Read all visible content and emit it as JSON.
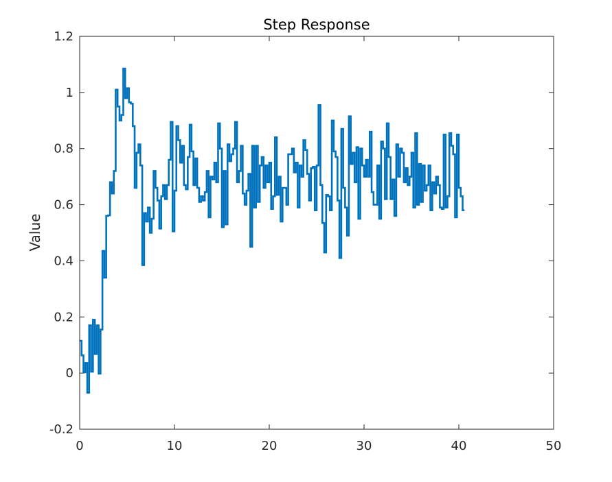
{
  "chart_data": {
    "type": "line",
    "style": "stairs",
    "title": "Step Response",
    "xlabel": "",
    "ylabel": "Value",
    "xlim": [
      0,
      50
    ],
    "ylim": [
      -0.2,
      1.2
    ],
    "xticks": [
      "0",
      "10",
      "20",
      "30",
      "40",
      "50"
    ],
    "yticks": [
      "-0.2",
      "0",
      "0.2",
      "0.4",
      "0.6",
      "0.8",
      "1",
      "1.2"
    ],
    "grid": false,
    "colors": {
      "series": "#0072BD",
      "axis": "#262626"
    },
    "series": [
      {
        "step": 0.2,
        "x0": 0,
        "values": [
          0.115,
          0.063,
          0.003,
          0.036,
          -0.07,
          0.17,
          0.005,
          0.19,
          0.068,
          0.17,
          -0.002,
          0.155,
          0.435,
          0.34,
          0.56,
          0.562,
          0.68,
          0.64,
          0.72,
          1.01,
          0.95,
          0.9,
          0.92,
          1.085,
          0.98,
          1.015,
          0.965,
          0.96,
          0.88,
          0.66,
          0.785,
          0.815,
          0.74,
          0.385,
          0.57,
          0.54,
          0.59,
          0.5,
          0.55,
          0.72,
          0.66,
          0.615,
          0.515,
          0.63,
          0.67,
          0.62,
          0.67,
          0.76,
          0.895,
          0.505,
          0.65,
          0.88,
          0.83,
          0.75,
          0.81,
          0.67,
          0.655,
          0.77,
          0.885,
          0.79,
          0.67,
          0.765,
          0.66,
          0.61,
          0.63,
          0.615,
          0.645,
          0.72,
          0.555,
          0.7,
          0.69,
          0.75,
          0.68,
          0.89,
          0.8,
          0.52,
          0.72,
          0.53,
          0.815,
          0.755,
          0.78,
          0.8,
          0.895,
          0.68,
          0.72,
          0.81,
          0.64,
          0.6,
          0.65,
          0.71,
          0.45,
          0.81,
          0.59,
          0.81,
          0.61,
          0.74,
          0.77,
          0.66,
          0.74,
          0.68,
          0.75,
          0.585,
          0.63,
          0.84,
          0.635,
          0.7,
          0.54,
          0.66,
          0.66,
          0.6,
          0.78,
          0.78,
          0.8,
          0.715,
          0.75,
          0.59,
          0.74,
          0.7,
          0.83,
          0.795,
          0.71,
          0.615,
          0.73,
          0.735,
          0.58,
          0.74,
          0.955,
          0.67,
          0.535,
          0.43,
          0.635,
          0.63,
          0.58,
          0.9,
          0.79,
          0.77,
          0.615,
          0.41,
          0.87,
          0.66,
          0.59,
          0.49,
          0.915,
          0.745,
          0.785,
          0.68,
          0.805,
          0.55,
          0.8,
          0.74,
          0.7,
          0.76,
          0.7,
          0.86,
          0.645,
          0.6,
          0.6,
          0.74,
          0.55,
          0.825,
          0.8,
          0.62,
          0.89,
          0.77,
          0.62,
          0.69,
          0.56,
          0.815,
          0.7,
          0.8,
          0.785,
          0.68,
          0.73,
          0.67,
          0.7,
          0.785,
          0.59,
          0.855,
          0.6,
          0.745,
          0.61,
          0.74,
          0.65,
          0.67,
          0.74,
          0.58,
          0.68,
          0.64,
          0.7,
          0.67,
          0.59,
          0.585,
          0.85,
          0.59,
          0.63,
          0.855,
          0.81,
          0.78,
          0.555,
          0.85,
          0.66,
          0.63,
          0.58
        ]
      }
    ]
  }
}
